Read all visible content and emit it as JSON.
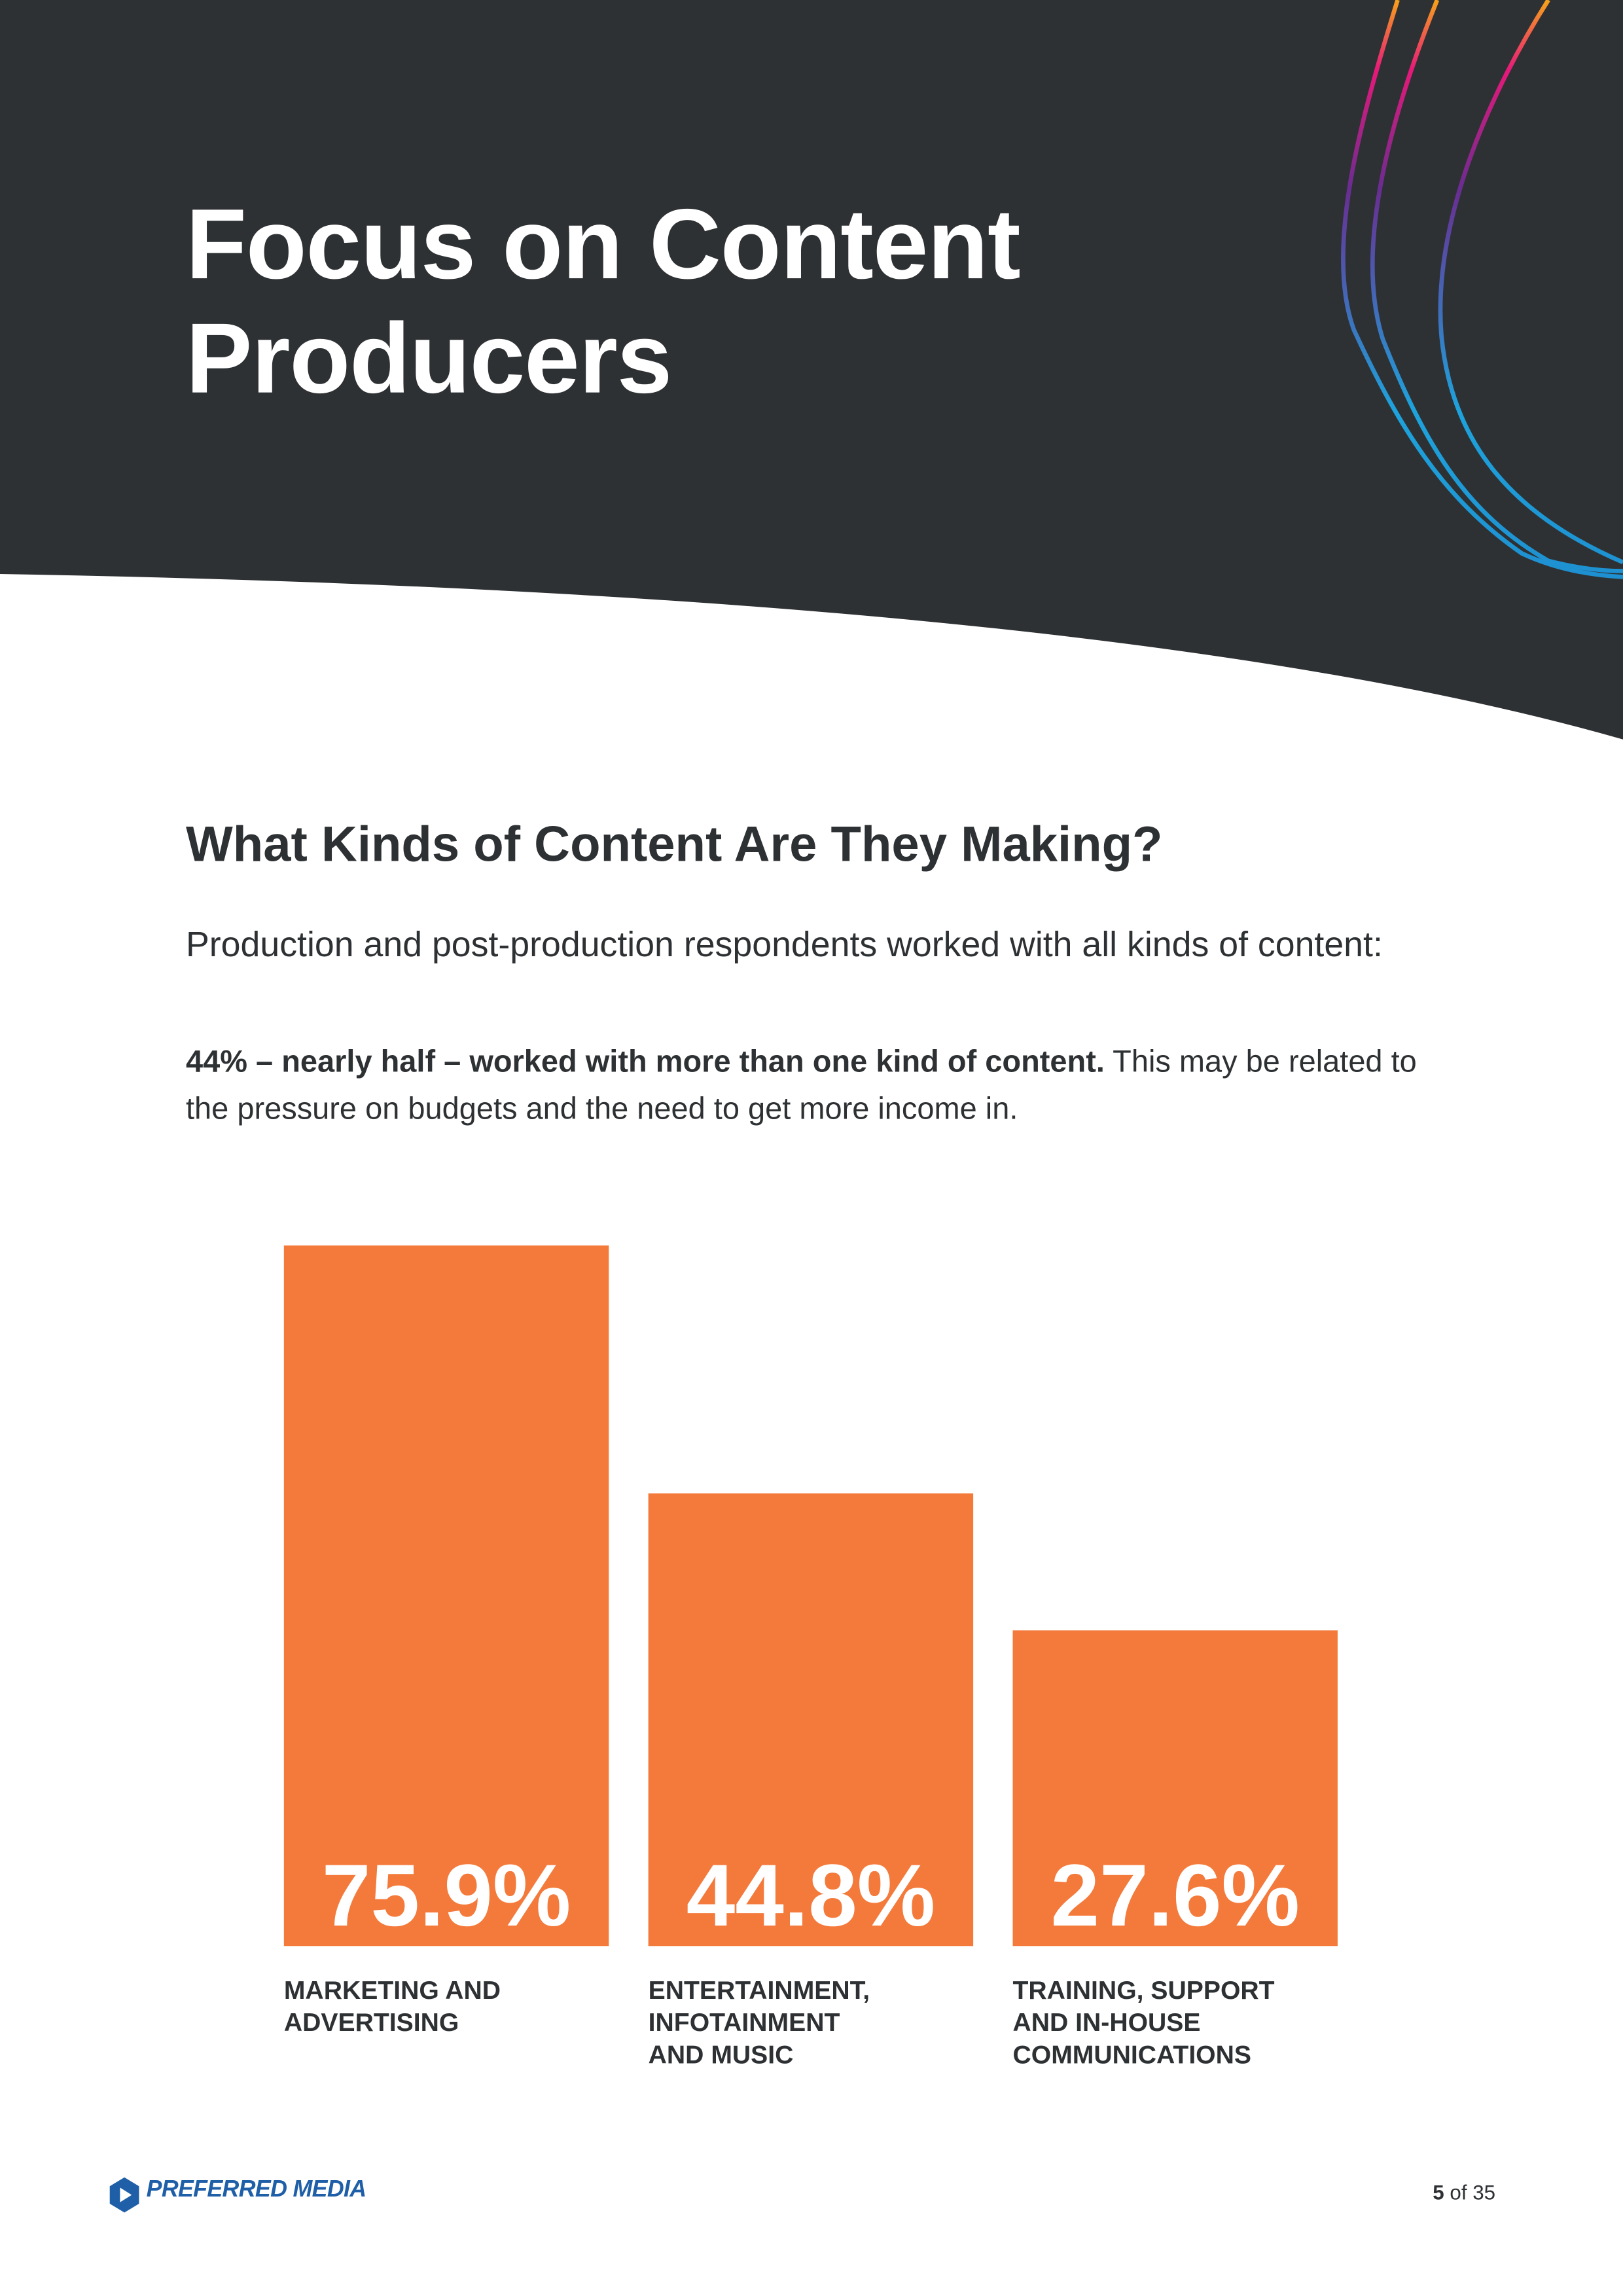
{
  "title": "Focus on Content Producers",
  "heading": "What Kinds of Content Are They Making?",
  "intro": "Production and post-production respondents worked with all kinds of content:",
  "highlight": {
    "bold": "44% – nearly half – worked with more than one kind of content.",
    "text": "This may be related to the pressure on budgets and the need to get more income in."
  },
  "chart_data": {
    "type": "bar",
    "categories": [
      "MARKETING AND\nADVERTISING",
      "ENTERTAINMENT,\nINFOTAINMENT\nAND MUSIC",
      "TRAINING, SUPPORT\nAND IN-HOUSE\nCOMMUNICATIONS"
    ],
    "values": [
      75.9,
      44.8,
      27.6
    ],
    "value_labels": [
      "75.9%",
      "44.8%",
      "27.6%"
    ],
    "color": "#f47a3c",
    "ylim": [
      -12,
      76
    ]
  },
  "footer": {
    "brand": "PREFERRED MEDIA",
    "page": "5",
    "of": "of 35"
  }
}
